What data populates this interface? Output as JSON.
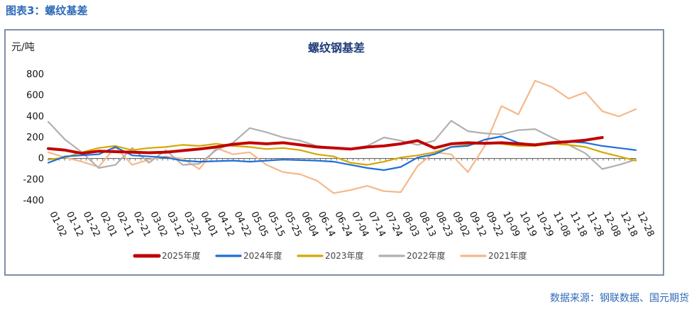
{
  "caption": "图表3：螺纹基差",
  "source": "数据来源：钢联数据、国元期货",
  "chart_data": {
    "type": "line",
    "title": "螺纹钢基差",
    "ylabel": "元/吨",
    "xlabel": "",
    "ylim": [
      -400,
      800
    ],
    "yticks": [
      -400,
      -200,
      0,
      200,
      400,
      600,
      800
    ],
    "x_labels": [
      "01-02",
      "01-12",
      "01-22",
      "02-01",
      "02-11",
      "02-21",
      "03-02",
      "03-12",
      "03-22",
      "04-01",
      "04-12",
      "04-22",
      "05-05",
      "05-15",
      "05-25",
      "06-04",
      "06-14",
      "06-24",
      "07-04",
      "07-14",
      "07-24",
      "08-03",
      "08-13",
      "08-23",
      "09-02",
      "09-12",
      "09-22",
      "10-09",
      "10-19",
      "10-29",
      "11-08",
      "11-18",
      "11-28",
      "12-08",
      "12-18",
      "12-28"
    ],
    "legend_position": "bottom",
    "series": [
      {
        "name": "2025年度",
        "color": "#c00000",
        "width": 4,
        "values": [
          95,
          80,
          50,
          70,
          65,
          60,
          55,
          60,
          75,
          90,
          110,
          135,
          150,
          140,
          150,
          130,
          110,
          100,
          90,
          110,
          120,
          140,
          170,
          100,
          140,
          150,
          145,
          150,
          140,
          130,
          150,
          160,
          175,
          200,
          null,
          null
        ]
      },
      {
        "name": "2024年度",
        "color": "#1f6fd6",
        "width": 2.2,
        "values": [
          -40,
          20,
          30,
          40,
          110,
          30,
          20,
          10,
          -20,
          -30,
          -25,
          -20,
          -30,
          -20,
          -10,
          -15,
          -20,
          -30,
          -60,
          -90,
          -110,
          -80,
          10,
          40,
          110,
          120,
          180,
          210,
          150,
          130,
          140,
          160,
          150,
          120,
          100,
          80
        ]
      },
      {
        "name": "2023年度",
        "color": "#d4a800",
        "width": 2.2,
        "values": [
          -10,
          10,
          60,
          100,
          120,
          80,
          100,
          110,
          130,
          120,
          140,
          120,
          110,
          90,
          100,
          80,
          40,
          20,
          -40,
          -60,
          -30,
          10,
          30,
          60,
          110,
          130,
          150,
          140,
          120,
          120,
          140,
          130,
          110,
          60,
          20,
          -20
        ]
      },
      {
        "name": "2022年度",
        "color": "#b0b0b0",
        "width": 2.2,
        "values": [
          350,
          180,
          60,
          -90,
          -60,
          100,
          -40,
          80,
          -60,
          -50,
          80,
          150,
          290,
          250,
          200,
          170,
          120,
          100,
          90,
          120,
          200,
          170,
          130,
          170,
          360,
          260,
          240,
          230,
          270,
          280,
          200,
          130,
          50,
          -100,
          -60,
          -10
        ]
      },
      {
        "name": "2021年度",
        "color": "#f5b88a",
        "width": 2.2,
        "values": [
          60,
          10,
          -30,
          -80,
          110,
          -60,
          -10,
          20,
          0,
          -100,
          100,
          40,
          60,
          -60,
          -130,
          -150,
          -210,
          -330,
          -300,
          -260,
          -310,
          -320,
          -70,
          60,
          40,
          -130,
          120,
          500,
          420,
          740,
          680,
          570,
          630,
          450,
          400,
          470
        ]
      }
    ]
  }
}
